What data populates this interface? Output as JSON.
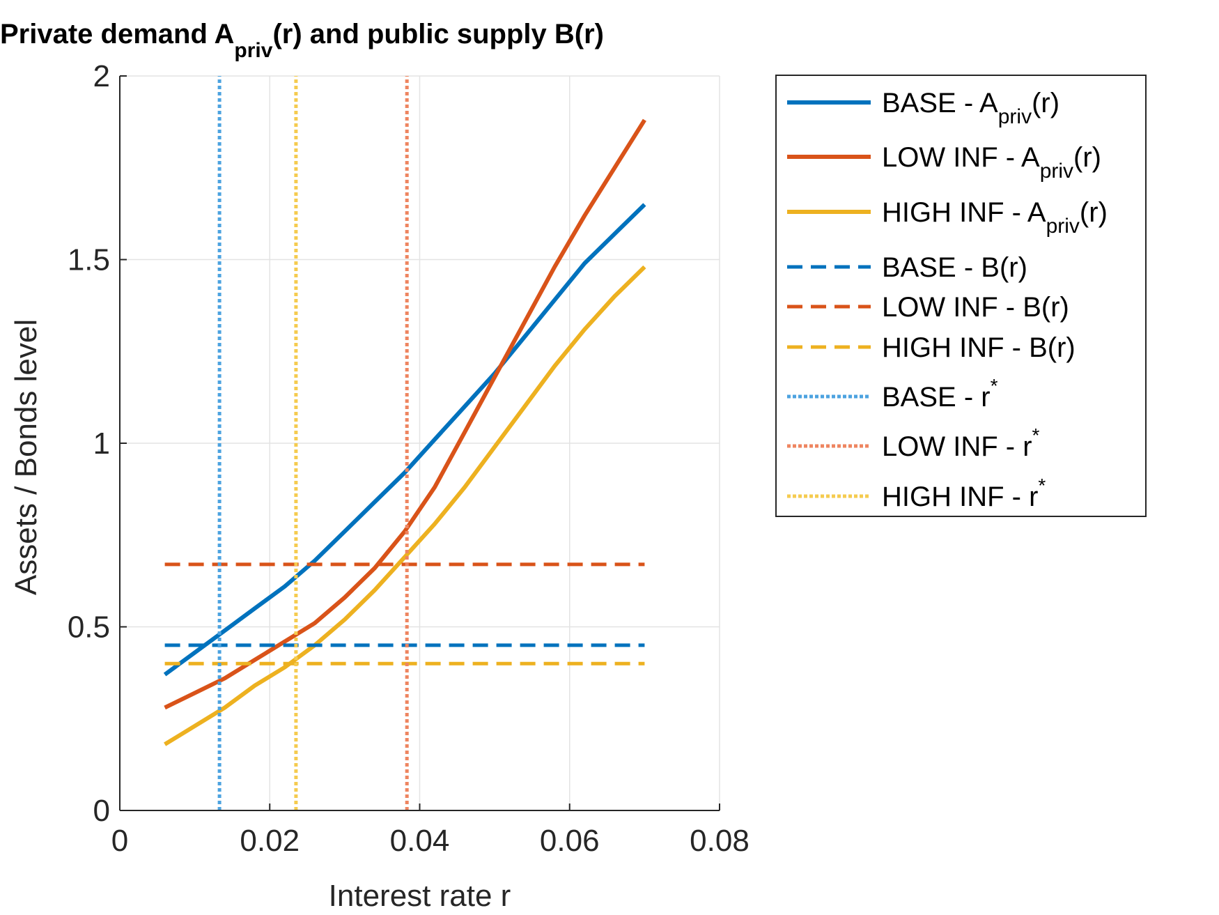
{
  "chart_data": {
    "type": "line",
    "title": "Private demand A",
    "title_sub": "priv",
    "title_tail": "(r) and public supply B(r)",
    "xlabel": "Interest rate r",
    "ylabel": "Assets / Bonds level",
    "xlim": [
      0,
      0.08
    ],
    "ylim": [
      0,
      2
    ],
    "xticks": [
      0,
      0.02,
      0.04,
      0.06,
      0.08
    ],
    "xtick_labels": [
      "0",
      "0.02",
      "0.04",
      "0.06",
      "0.08"
    ],
    "yticks": [
      0,
      0.5,
      1,
      1.5,
      2
    ],
    "ytick_labels": [
      "0",
      "0.5",
      "1",
      "1.5",
      "2"
    ],
    "grid": true,
    "legend_position": "outside-right",
    "series": [
      {
        "name": "BASE - A",
        "name_sub": "priv",
        "name_tail": "(r)",
        "style": "solid",
        "color": "#0072BD",
        "x": [
          0.006,
          0.01,
          0.014,
          0.018,
          0.022,
          0.026,
          0.03,
          0.034,
          0.038,
          0.042,
          0.046,
          0.05,
          0.054,
          0.058,
          0.062,
          0.066,
          0.07
        ],
        "y": [
          0.37,
          0.43,
          0.49,
          0.55,
          0.61,
          0.68,
          0.76,
          0.84,
          0.92,
          1.01,
          1.1,
          1.19,
          1.29,
          1.39,
          1.49,
          1.57,
          1.65
        ]
      },
      {
        "name": "LOW INF - A",
        "name_sub": "priv",
        "name_tail": "(r)",
        "style": "solid",
        "color": "#D95319",
        "x": [
          0.006,
          0.01,
          0.014,
          0.018,
          0.022,
          0.026,
          0.03,
          0.034,
          0.038,
          0.042,
          0.046,
          0.05,
          0.054,
          0.058,
          0.062,
          0.066,
          0.07
        ],
        "y": [
          0.28,
          0.32,
          0.36,
          0.41,
          0.46,
          0.51,
          0.58,
          0.66,
          0.76,
          0.88,
          1.03,
          1.18,
          1.33,
          1.48,
          1.62,
          1.75,
          1.88
        ]
      },
      {
        "name": "HIGH INF - A",
        "name_sub": "priv",
        "name_tail": "(r)",
        "style": "solid",
        "color": "#EDB120",
        "x": [
          0.006,
          0.01,
          0.014,
          0.018,
          0.022,
          0.026,
          0.03,
          0.034,
          0.038,
          0.042,
          0.046,
          0.05,
          0.054,
          0.058,
          0.062,
          0.066,
          0.07
        ],
        "y": [
          0.18,
          0.23,
          0.28,
          0.34,
          0.39,
          0.45,
          0.52,
          0.6,
          0.69,
          0.78,
          0.88,
          0.99,
          1.1,
          1.21,
          1.31,
          1.4,
          1.48
        ]
      },
      {
        "name": "BASE - B(r)",
        "style": "dashed",
        "color": "#0072BD",
        "x": [
          0.006,
          0.07
        ],
        "y": [
          0.45,
          0.45
        ]
      },
      {
        "name": "LOW INF - B(r)",
        "style": "dashed",
        "color": "#D95319",
        "x": [
          0.006,
          0.07
        ],
        "y": [
          0.67,
          0.67
        ]
      },
      {
        "name": "HIGH INF - B(r)",
        "style": "dashed",
        "color": "#EDB120",
        "x": [
          0.006,
          0.07
        ],
        "y": [
          0.4,
          0.4
        ]
      },
      {
        "name": "BASE - r",
        "name_sup": "*",
        "style": "dotted",
        "color": "#4DA3E0",
        "x": [
          0.0133,
          0.0133
        ],
        "y": [
          0,
          2
        ]
      },
      {
        "name": "LOW INF - r",
        "name_sup": "*",
        "style": "dotted",
        "color": "#EE8560",
        "x": [
          0.0383,
          0.0383
        ],
        "y": [
          0,
          2
        ]
      },
      {
        "name": "HIGH INF - r",
        "name_sup": "*",
        "style": "dotted",
        "color": "#F5CB4F",
        "x": [
          0.0235,
          0.0235
        ],
        "y": [
          0,
          2
        ]
      }
    ]
  }
}
